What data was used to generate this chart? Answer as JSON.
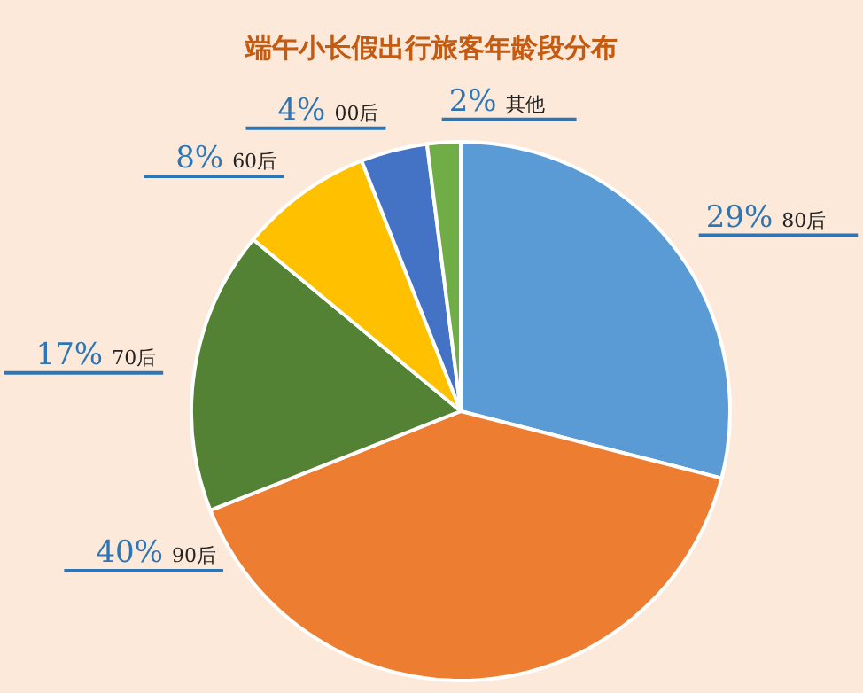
{
  "chart_data": {
    "type": "pie",
    "title": "端午小长假出行旅客年龄段分布",
    "categories": [
      "80后",
      "90后",
      "70后",
      "60后",
      "00后",
      "其他"
    ],
    "values": [
      29,
      40,
      17,
      8,
      4,
      2
    ],
    "colors": [
      "#5b9bd5",
      "#ed7d31",
      "#548235",
      "#ffc000",
      "#4472c4",
      "#70ad47"
    ],
    "value_labels": [
      "29%",
      "40%",
      "17%",
      "8%",
      "4%",
      "2%"
    ]
  }
}
